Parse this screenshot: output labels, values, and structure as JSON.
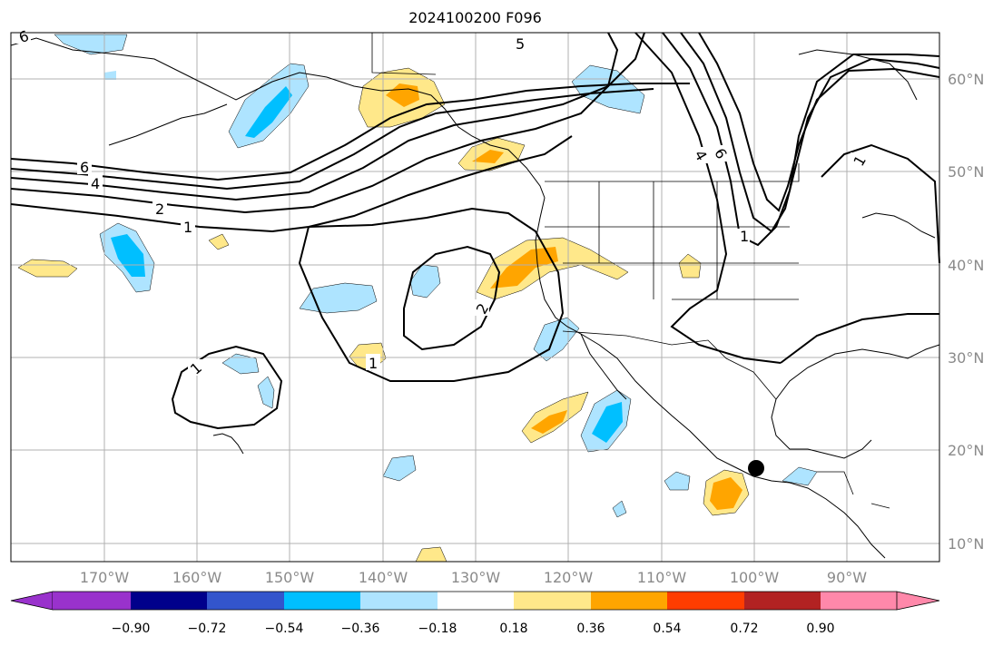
{
  "title": "2024100200 F096",
  "colors": {
    "bins": [
      "#9932cc",
      "#00008b",
      "#3355cc",
      "#00bfff",
      "#aee4ff",
      "#ffffff",
      "#ffe88a",
      "#ffa500",
      "#ff3d00",
      "#b22222",
      "#ff88aa"
    ],
    "contour": "#000000",
    "grid": "#b0b0b0",
    "axis_label": "#8a8a8a"
  },
  "map": {
    "lon_range": [
      -180,
      -80
    ],
    "lat_range": [
      8,
      65
    ],
    "lat_labels": [
      "60°N",
      "50°N",
      "40°N",
      "30°N",
      "20°N",
      "10°N"
    ],
    "lon_labels": [
      "170°W",
      "160°W",
      "150°W",
      "140°W",
      "130°W",
      "120°W",
      "110°W",
      "100°W",
      "90°W"
    ],
    "contour_labels": [
      "6",
      "5",
      "6",
      "4",
      "2",
      "1",
      "1",
      "2",
      "1",
      "4",
      "6",
      "1",
      "1"
    ],
    "marker_icon": "filled-circle-marker"
  },
  "colorbar": {
    "ticks": [
      "−0.90",
      "−0.72",
      "−0.54",
      "−0.36",
      "−0.18",
      "0.18",
      "0.36",
      "0.54",
      "0.72",
      "0.90"
    ],
    "extend": "both"
  }
}
